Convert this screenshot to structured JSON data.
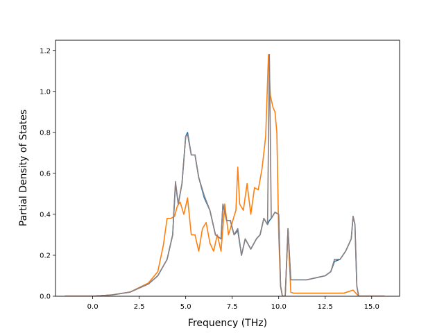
{
  "chart_data": {
    "type": "line",
    "title": "",
    "xlabel": "Frequency (THz)",
    "ylabel": "Partial Density of States",
    "xlim": [
      -2.0,
      16.5
    ],
    "ylim": [
      0.0,
      1.25
    ],
    "grid": false,
    "legend": "none",
    "xticks": [
      0.0,
      2.5,
      5.0,
      7.5,
      10.0,
      12.5,
      15.0
    ],
    "xtick_labels": [
      "0.0",
      "2.5",
      "5.0",
      "7.5",
      "10.0",
      "12.5",
      "15.0"
    ],
    "yticks": [
      0.0,
      0.2,
      0.4,
      0.6,
      0.8,
      1.0,
      1.2
    ],
    "ytick_labels": [
      "0.0",
      "0.2",
      "0.4",
      "0.6",
      "0.8",
      "1.0",
      "1.2"
    ],
    "series": [
      {
        "color": "#1f77b4",
        "x": [
          -1.5,
          0.0,
          1.0,
          2.0,
          3.0,
          3.5,
          4.0,
          4.3,
          4.45,
          4.6,
          4.8,
          5.0,
          5.1,
          5.3,
          5.5,
          5.7,
          6.0,
          6.3,
          6.6,
          6.9,
          7.0,
          7.2,
          7.4,
          7.6,
          7.8,
          8.0,
          8.2,
          8.5,
          8.8,
          9.0,
          9.2,
          9.4,
          9.5,
          9.6,
          9.8,
          10.0,
          10.1,
          10.2,
          10.35,
          10.5,
          10.65,
          10.8,
          11.5,
          12.0,
          12.5,
          12.8,
          13.0,
          13.3,
          13.6,
          13.9,
          14.0,
          14.1,
          14.2,
          14.3,
          14.5,
          15.0,
          15.7
        ],
        "y": [
          0.0,
          0.0,
          0.006,
          0.02,
          0.06,
          0.1,
          0.18,
          0.3,
          0.55,
          0.45,
          0.55,
          0.78,
          0.8,
          0.69,
          0.69,
          0.58,
          0.48,
          0.42,
          0.3,
          0.28,
          0.45,
          0.37,
          0.37,
          0.3,
          0.32,
          0.2,
          0.28,
          0.23,
          0.28,
          0.3,
          0.38,
          0.35,
          0.37,
          0.38,
          0.41,
          0.4,
          0.05,
          0.0,
          0.0,
          0.33,
          0.08,
          0.08,
          0.08,
          0.09,
          0.1,
          0.12,
          0.17,
          0.18,
          0.22,
          0.28,
          0.39,
          0.35,
          0.05,
          0.0,
          0.0,
          0.0,
          0.0
        ]
      },
      {
        "color": "#ff7f0e",
        "x": [
          -1.5,
          0.0,
          1.0,
          2.0,
          3.0,
          3.5,
          3.8,
          4.0,
          4.2,
          4.4,
          4.55,
          4.7,
          4.9,
          5.1,
          5.3,
          5.5,
          5.7,
          5.9,
          6.1,
          6.3,
          6.5,
          6.7,
          6.9,
          7.1,
          7.3,
          7.5,
          7.7,
          7.8,
          7.9,
          8.1,
          8.3,
          8.5,
          8.7,
          8.9,
          9.1,
          9.3,
          9.45,
          9.55,
          9.7,
          9.8,
          9.9,
          10.0,
          10.1,
          10.2,
          10.35,
          10.5,
          10.65,
          10.8,
          11.5,
          12.5,
          13.5,
          14.0,
          14.2,
          14.3,
          15.0,
          15.7
        ],
        "y": [
          0.0,
          0.0,
          0.006,
          0.02,
          0.065,
          0.12,
          0.25,
          0.38,
          0.38,
          0.39,
          0.44,
          0.46,
          0.4,
          0.48,
          0.3,
          0.3,
          0.22,
          0.33,
          0.36,
          0.26,
          0.22,
          0.3,
          0.22,
          0.45,
          0.3,
          0.36,
          0.42,
          0.63,
          0.45,
          0.42,
          0.55,
          0.4,
          0.53,
          0.52,
          0.62,
          0.78,
          1.18,
          0.98,
          0.92,
          0.9,
          0.8,
          0.3,
          0.05,
          0.0,
          0.0,
          0.32,
          0.02,
          0.015,
          0.015,
          0.015,
          0.015,
          0.03,
          0.01,
          0.0,
          0.0,
          0.0
        ]
      },
      {
        "color": "#8c7f80",
        "x": [
          -1.5,
          0.0,
          1.0,
          2.0,
          3.0,
          3.5,
          4.0,
          4.3,
          4.45,
          4.6,
          4.8,
          5.0,
          5.1,
          5.3,
          5.5,
          5.7,
          6.0,
          6.3,
          6.6,
          6.9,
          7.0,
          7.2,
          7.4,
          7.6,
          7.8,
          8.0,
          8.2,
          8.5,
          8.8,
          9.0,
          9.2,
          9.4,
          9.5,
          9.6,
          9.8,
          10.0,
          10.1,
          10.2,
          10.35,
          10.5,
          10.65,
          10.8,
          11.5,
          12.0,
          12.5,
          12.8,
          13.0,
          13.3,
          13.6,
          13.9,
          14.0,
          14.1,
          14.2,
          14.3,
          14.5,
          15.0,
          15.7
        ],
        "y": [
          0.0,
          0.0,
          0.006,
          0.02,
          0.06,
          0.1,
          0.18,
          0.3,
          0.56,
          0.45,
          0.55,
          0.78,
          0.79,
          0.69,
          0.69,
          0.58,
          0.49,
          0.42,
          0.3,
          0.28,
          0.45,
          0.37,
          0.37,
          0.3,
          0.33,
          0.2,
          0.28,
          0.23,
          0.28,
          0.3,
          0.38,
          0.35,
          1.18,
          0.38,
          0.41,
          0.4,
          0.05,
          0.0,
          0.0,
          0.33,
          0.08,
          0.08,
          0.08,
          0.09,
          0.1,
          0.12,
          0.18,
          0.18,
          0.22,
          0.28,
          0.39,
          0.35,
          0.05,
          0.0,
          0.0,
          0.0,
          0.0
        ]
      }
    ]
  }
}
